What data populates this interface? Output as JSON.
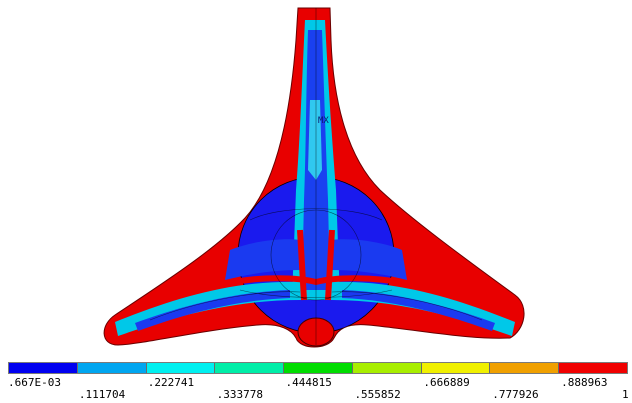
{
  "plot": {
    "type": "contour",
    "marker_label": "MX"
  },
  "colorbar": {
    "colors": [
      "#0000f0",
      "#00a6f0",
      "#00f0f0",
      "#00eea8",
      "#00dd00",
      "#a8ee00",
      "#f0f000",
      "#f0a000",
      "#f00000"
    ],
    "labels_top": [
      ".667E-03",
      ".222741",
      ".444815",
      ".666889",
      ".888963"
    ],
    "labels_bottom": [
      ".111704",
      ".333778",
      ".555852",
      ".777926",
      "1"
    ]
  }
}
